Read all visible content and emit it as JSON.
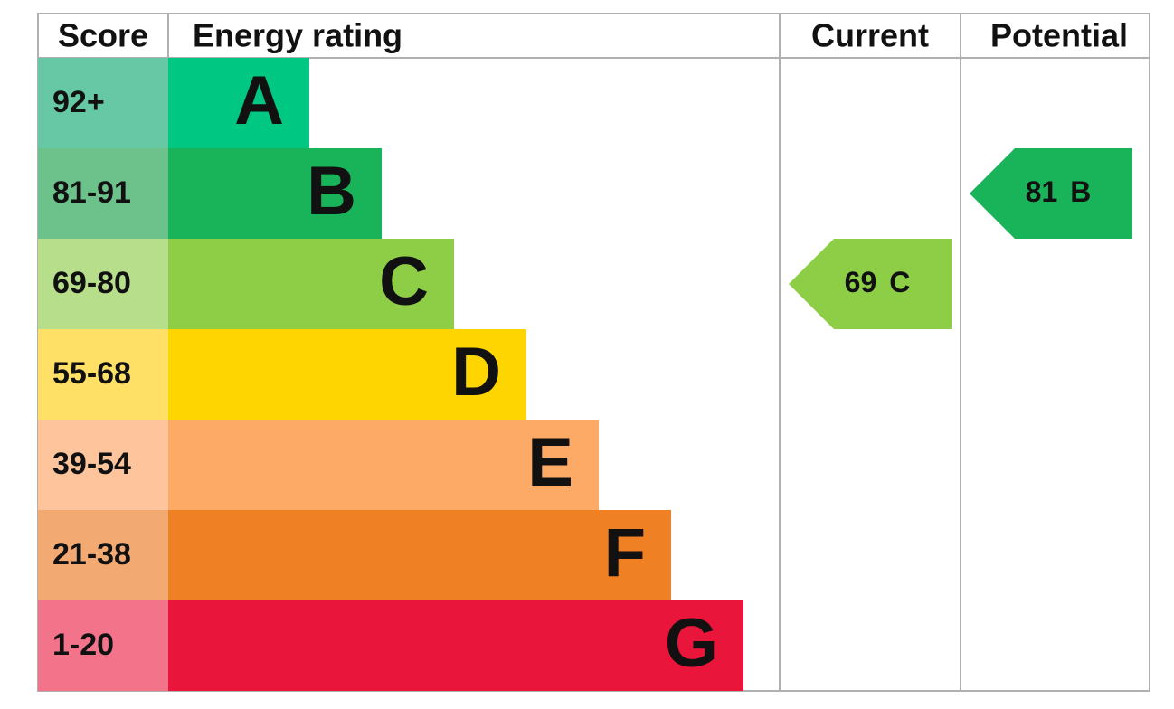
{
  "header": {
    "score": "Score",
    "energy_rating": "Energy rating",
    "current": "Current",
    "potential": "Potential"
  },
  "rows": [
    {
      "score": "92+",
      "band": "A",
      "color": "#00c781",
      "score_color": "#66c8a4"
    },
    {
      "score": "81-91",
      "band": "B",
      "color": "#19b459",
      "score_color": "#6cc28a"
    },
    {
      "score": "69-80",
      "band": "C",
      "color": "#8dce46",
      "score_color": "#b7df8b"
    },
    {
      "score": "55-68",
      "band": "D",
      "color": "#ffd500",
      "score_color": "#ffe066"
    },
    {
      "score": "39-54",
      "band": "E",
      "color": "#fcaa65",
      "score_color": "#fec49b"
    },
    {
      "score": "21-38",
      "band": "F",
      "color": "#ef8023",
      "score_color": "#f3aa72"
    },
    {
      "score": "1-20",
      "band": "G",
      "color": "#e9153b",
      "score_color": "#f3738a"
    }
  ],
  "current": {
    "score": 69,
    "band": "C"
  },
  "potential": {
    "score": 81,
    "band": "B"
  }
}
